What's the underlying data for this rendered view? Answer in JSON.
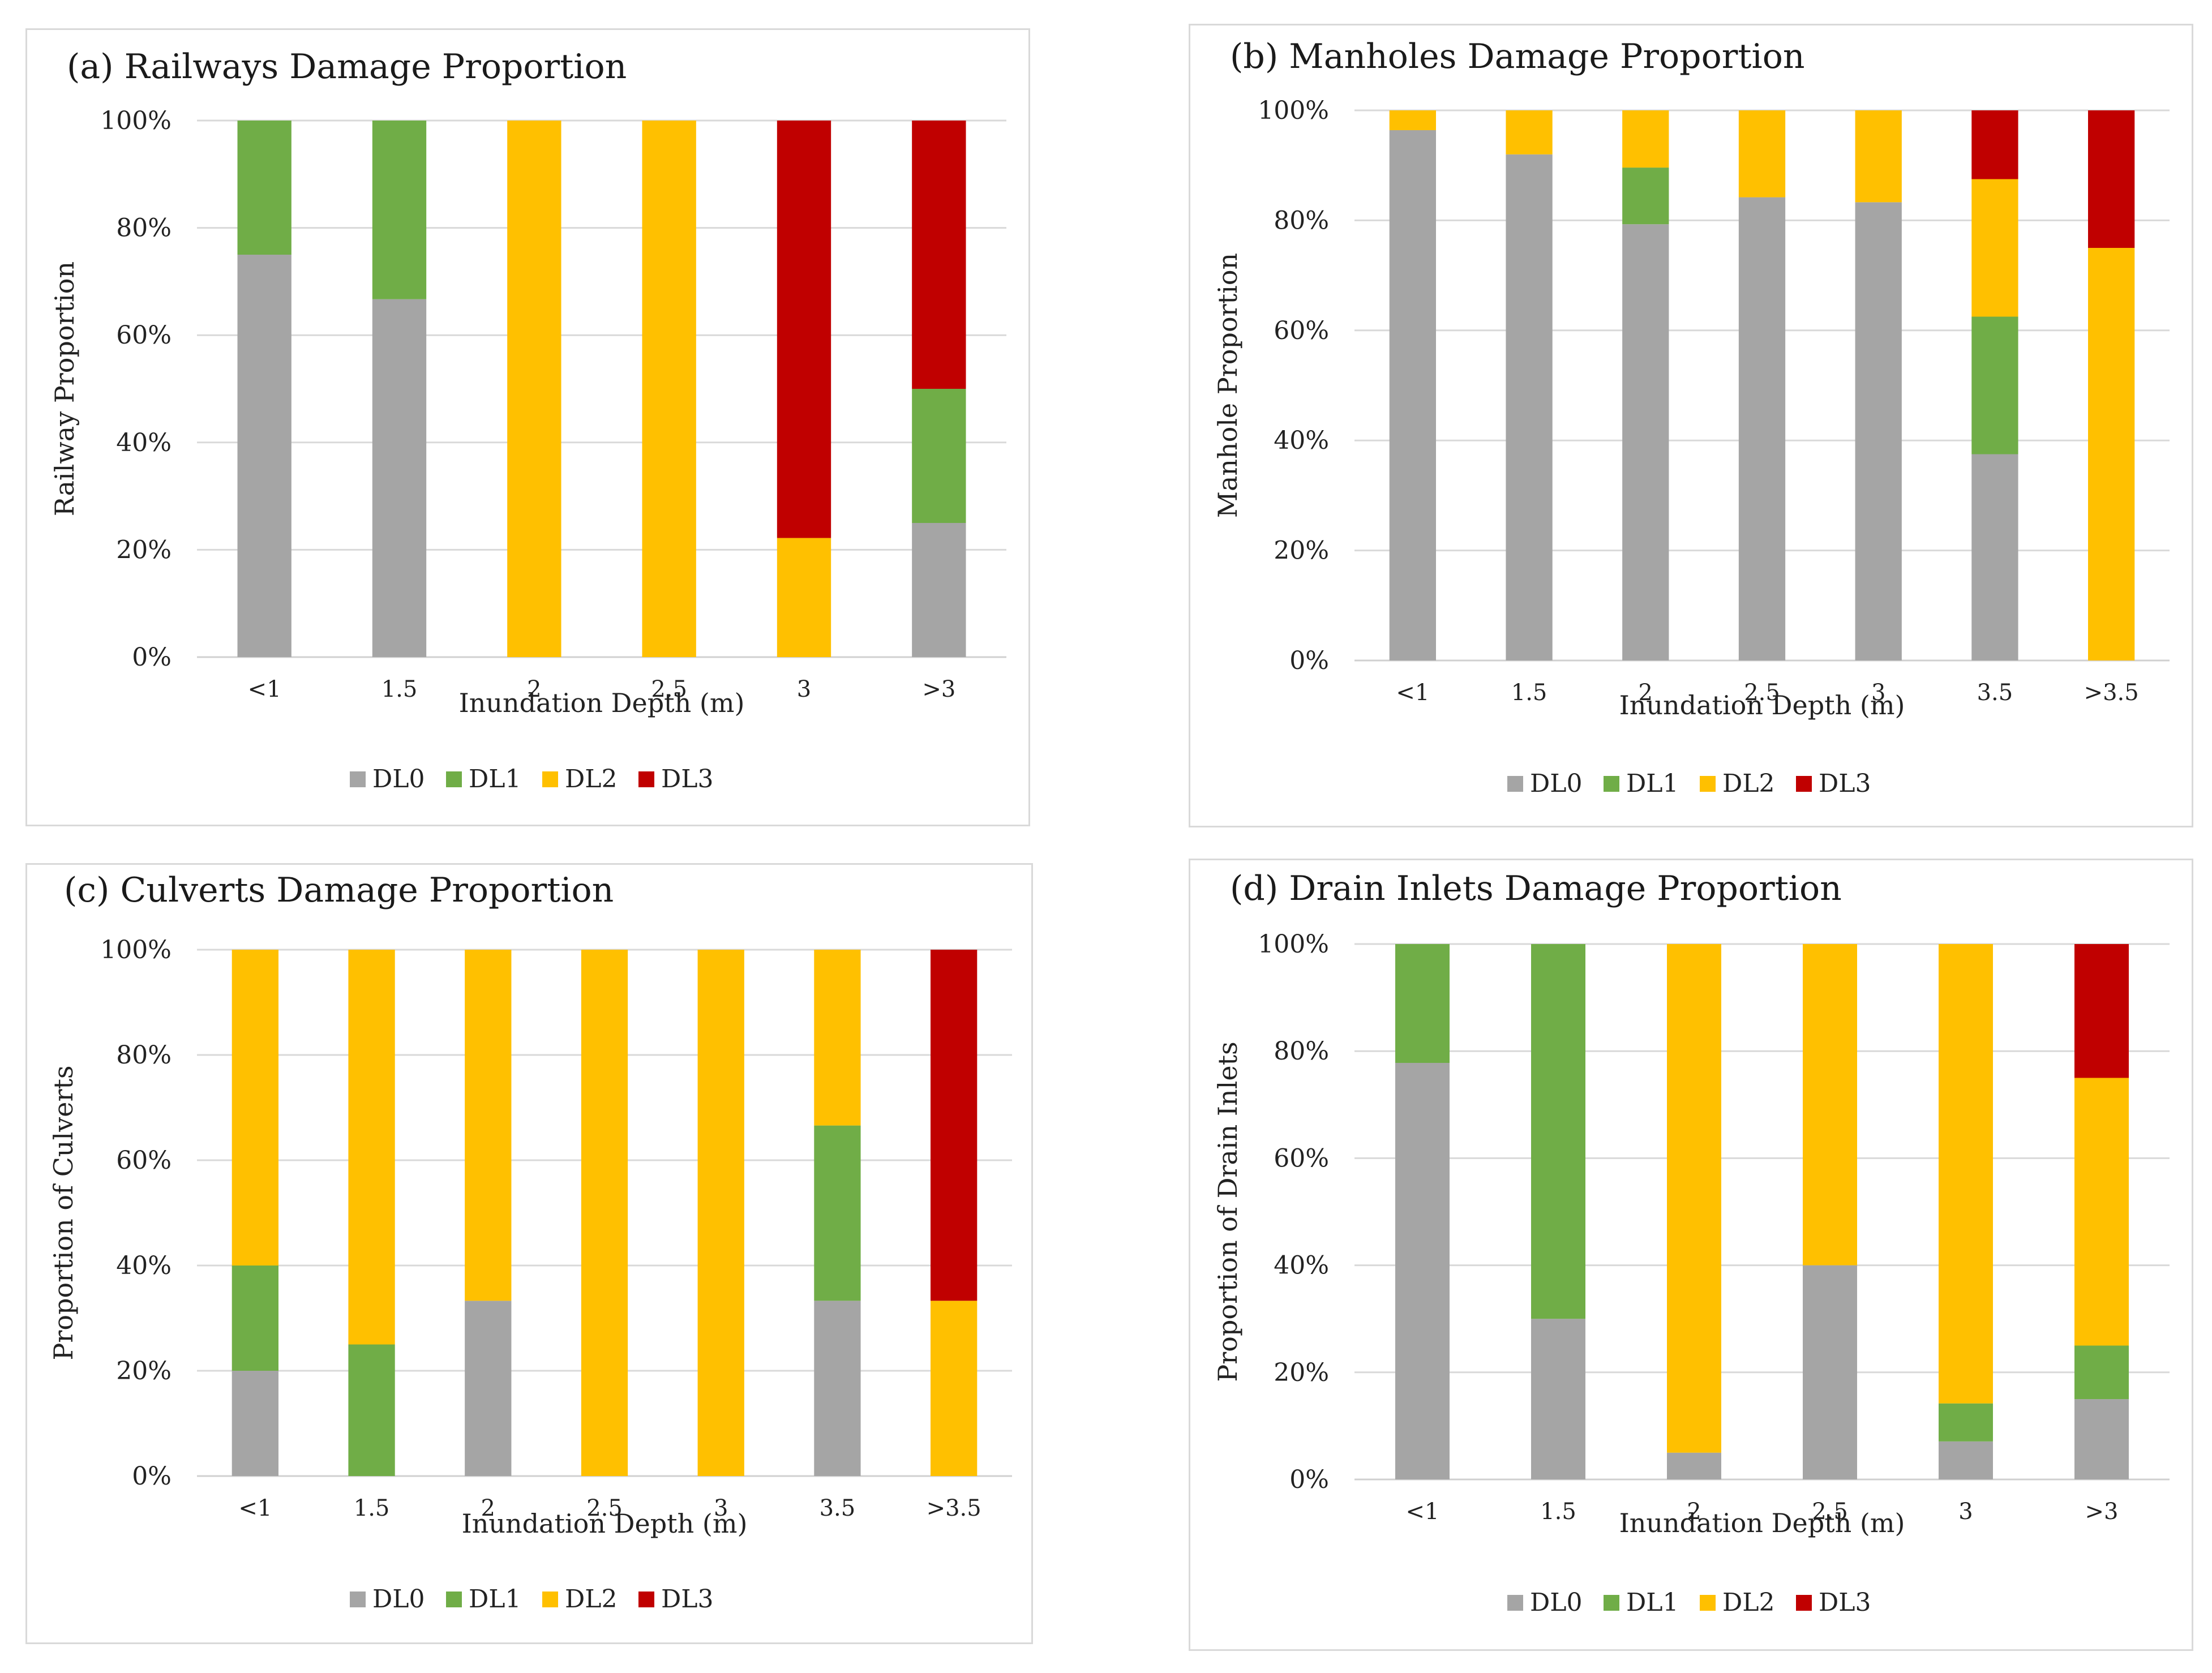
{
  "colors": {
    "DL0": "#a5a5a5",
    "DL1": "#70ad47",
    "DL2": "#ffc000",
    "DL3": "#c00000"
  },
  "chart_data": [
    {
      "id": "a",
      "type": "bar",
      "stacked": true,
      "title": "(a) Railways Damage Proportion",
      "xlabel": "Inundation Depth (m)",
      "ylabel": "Railway Proportion",
      "ylim": [
        0,
        100
      ],
      "yticks": [
        "0%",
        "20%",
        "40%",
        "60%",
        "80%",
        "100%"
      ],
      "legend_position": "bottom",
      "grid": true,
      "categories": [
        "<1",
        "1.5",
        "2",
        "2.5",
        "3",
        ">3"
      ],
      "series": [
        {
          "name": "DL0",
          "values": [
            75,
            66.7,
            0,
            0,
            0,
            25
          ]
        },
        {
          "name": "DL1",
          "values": [
            25,
            33.3,
            0,
            0,
            0,
            25
          ]
        },
        {
          "name": "DL2",
          "values": [
            0,
            0,
            100,
            100,
            22.2,
            0
          ]
        },
        {
          "name": "DL3",
          "values": [
            0,
            0,
            0,
            0,
            77.8,
            50
          ]
        }
      ]
    },
    {
      "id": "b",
      "type": "bar",
      "stacked": true,
      "title": "(b) Manholes Damage Proportion",
      "xlabel": "Inundation Depth (m)",
      "ylabel": "Manhole Proportion",
      "ylim": [
        0,
        100
      ],
      "yticks": [
        "0%",
        "20%",
        "40%",
        "60%",
        "80%",
        "100%"
      ],
      "legend_position": "bottom",
      "grid": true,
      "categories": [
        "<1",
        "1.5",
        "2",
        "2.5",
        "3",
        "3.5",
        ">3.5"
      ],
      "series": [
        {
          "name": "DL0",
          "values": [
            96.4,
            92,
            79.3,
            84.2,
            83.3,
            37.5,
            0
          ]
        },
        {
          "name": "DL1",
          "values": [
            0,
            0,
            10.3,
            0,
            0,
            25,
            0
          ]
        },
        {
          "name": "DL2",
          "values": [
            3.6,
            8,
            10.4,
            15.8,
            16.7,
            25,
            75
          ]
        },
        {
          "name": "DL3",
          "values": [
            0,
            0,
            0,
            0,
            0,
            12.5,
            25
          ]
        }
      ]
    },
    {
      "id": "c",
      "type": "bar",
      "stacked": true,
      "title": "(c) Culverts Damage Proportion",
      "xlabel": "Inundation Depth (m)",
      "ylabel": "Proportion of Culverts",
      "ylim": [
        0,
        100
      ],
      "yticks": [
        "0%",
        "20%",
        "40%",
        "60%",
        "80%",
        "100%"
      ],
      "legend_position": "bottom",
      "grid": true,
      "categories": [
        "<1",
        "1.5",
        "2",
        "2.5",
        "3",
        "3.5",
        ">3.5"
      ],
      "series": [
        {
          "name": "DL0",
          "values": [
            20,
            0,
            33.3,
            0,
            0,
            33.3,
            0
          ]
        },
        {
          "name": "DL1",
          "values": [
            20,
            25,
            0,
            0,
            0,
            33.3,
            0
          ]
        },
        {
          "name": "DL2",
          "values": [
            60,
            75,
            66.7,
            100,
            100,
            33.4,
            33.3
          ]
        },
        {
          "name": "DL3",
          "values": [
            0,
            0,
            0,
            0,
            0,
            0,
            66.7
          ]
        }
      ]
    },
    {
      "id": "d",
      "type": "bar",
      "stacked": true,
      "title": "(d) Drain Inlets Damage Proportion",
      "xlabel": "Inundation Depth (m)",
      "ylabel": "Proportion of Drain Inlets",
      "ylim": [
        0,
        100
      ],
      "yticks": [
        "0%",
        "20%",
        "40%",
        "60%",
        "80%",
        "100%"
      ],
      "legend_position": "bottom",
      "grid": true,
      "categories": [
        "<1",
        "1.5",
        "2",
        "2.5",
        "3",
        ">3"
      ],
      "series": [
        {
          "name": "DL0",
          "values": [
            77.8,
            30,
            5,
            40,
            7.1,
            15
          ]
        },
        {
          "name": "DL1",
          "values": [
            22.2,
            70,
            0,
            0,
            7.1,
            10
          ]
        },
        {
          "name": "DL2",
          "values": [
            0,
            0,
            95,
            60,
            85.8,
            50
          ]
        },
        {
          "name": "DL3",
          "values": [
            0,
            0,
            0,
            0,
            0,
            25
          ]
        }
      ]
    }
  ]
}
